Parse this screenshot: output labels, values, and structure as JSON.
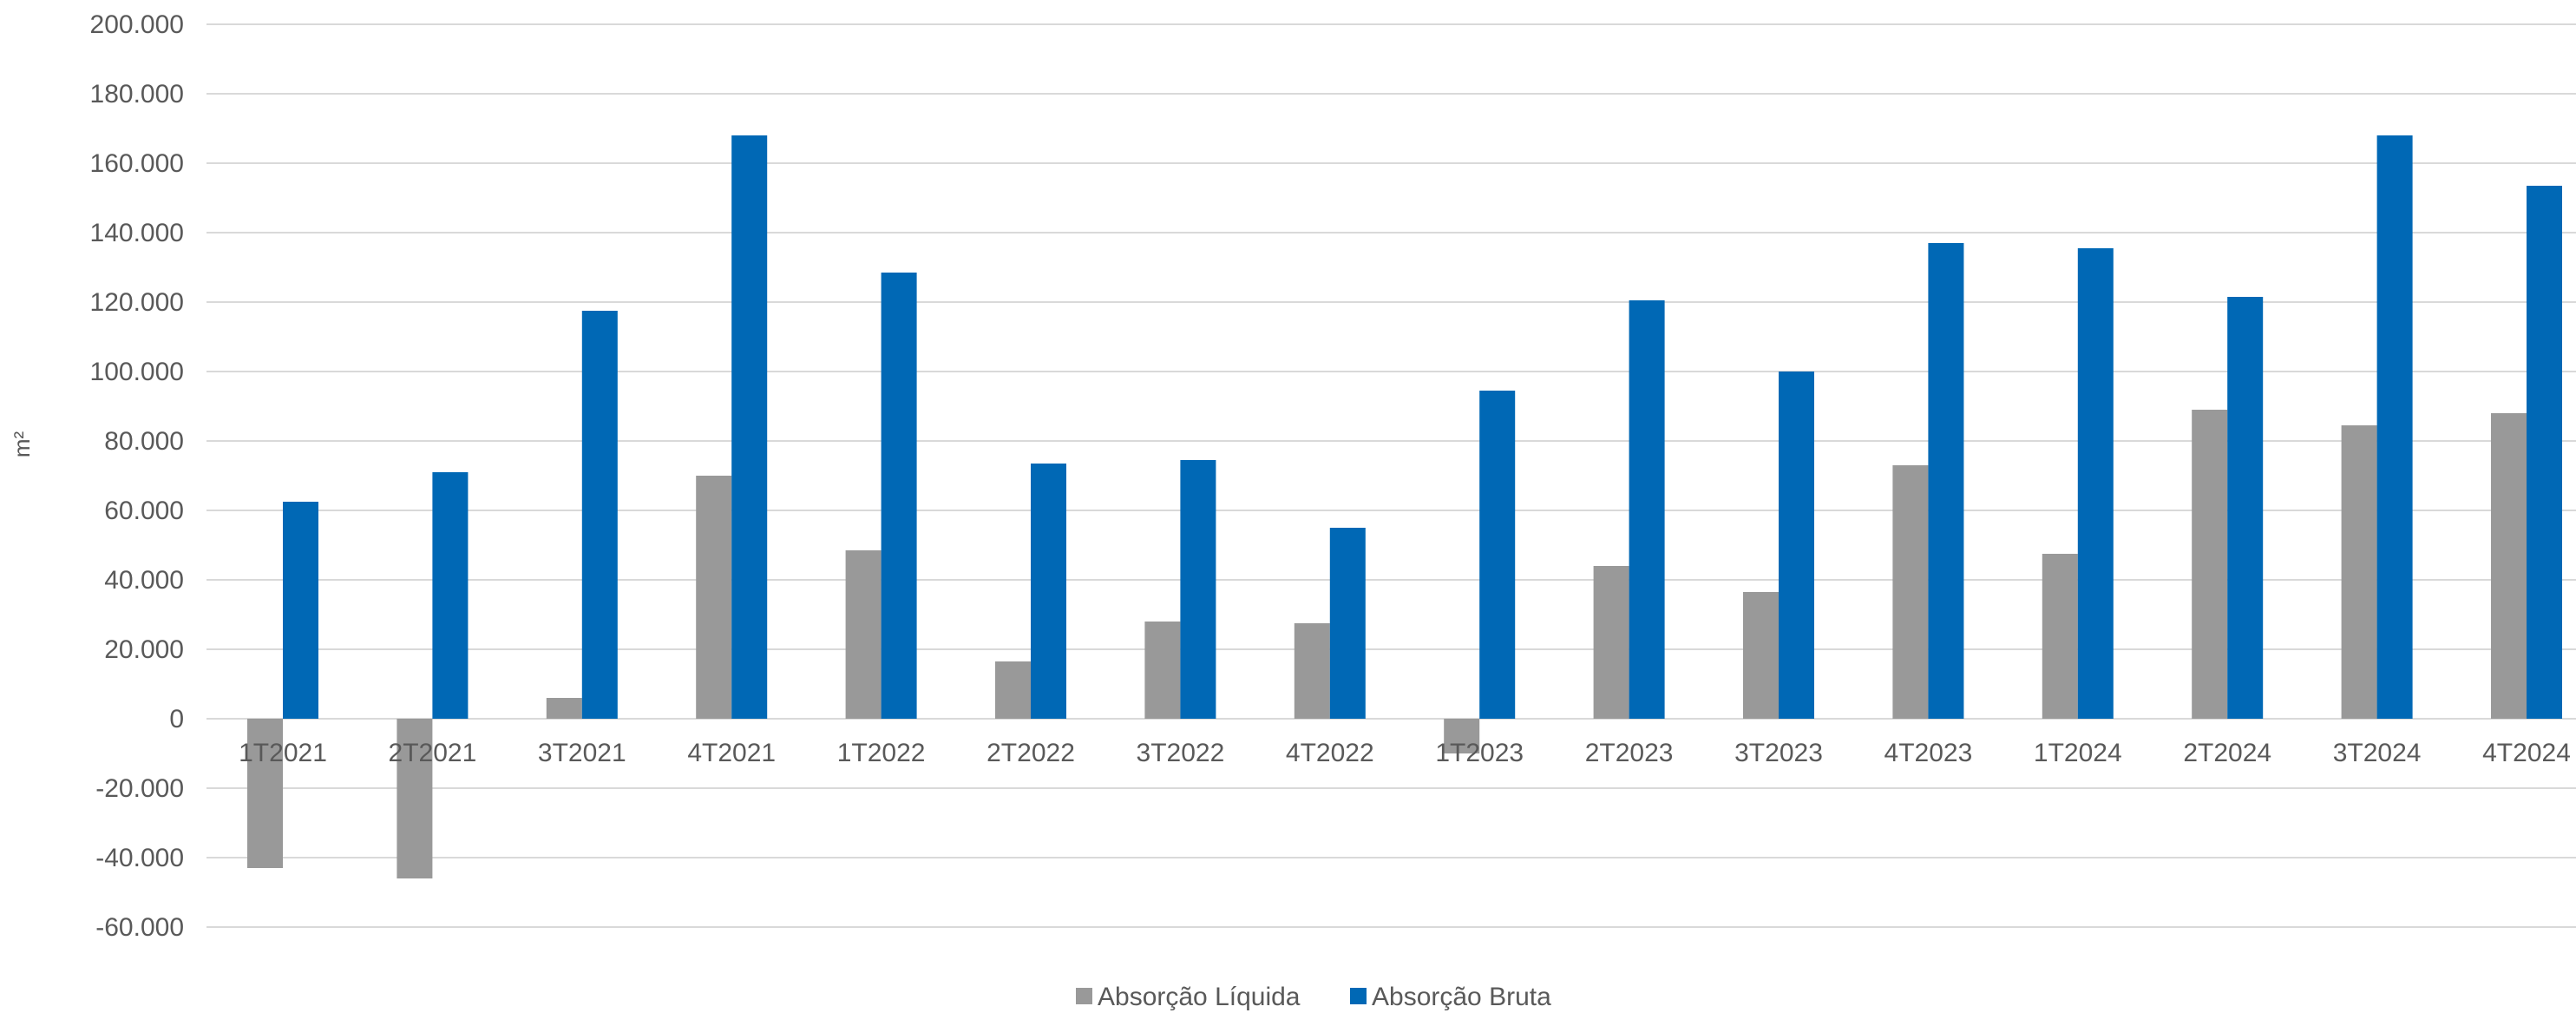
{
  "chart_data": {
    "type": "bar",
    "ylabel": "m²",
    "ylim": [
      -60000,
      200000
    ],
    "ytick_step": 20000,
    "ytick_labels": [
      "200.000",
      "180.000",
      "160.000",
      "140.000",
      "120.000",
      "100.000",
      "80.000",
      "60.000",
      "40.000",
      "20.000",
      "0",
      "-20.000",
      "-40.000",
      "-60.000"
    ],
    "grid": true,
    "legend_position": "bottom",
    "categories": [
      "1T2021",
      "2T2021",
      "3T2021",
      "4T2021",
      "1T2022",
      "2T2022",
      "3T2022",
      "4T2022",
      "1T2023",
      "2T2023",
      "3T2023",
      "4T2023",
      "1T2024",
      "2T2024",
      "3T2024",
      "4T2024"
    ],
    "series": [
      {
        "name": "Absorção Líquida",
        "color": "#999999",
        "values": [
          -43000,
          -46000,
          6000,
          70000,
          48500,
          16500,
          28000,
          27500,
          -10000,
          44000,
          36500,
          73000,
          47500,
          89000,
          84500,
          88000
        ]
      },
      {
        "name": "Absorção Bruta",
        "color": "#0068b5",
        "values": [
          62500,
          71000,
          117500,
          168000,
          128500,
          73500,
          74500,
          55000,
          94500,
          120500,
          100000,
          137000,
          135500,
          121500,
          168000,
          153500
        ]
      }
    ]
  }
}
